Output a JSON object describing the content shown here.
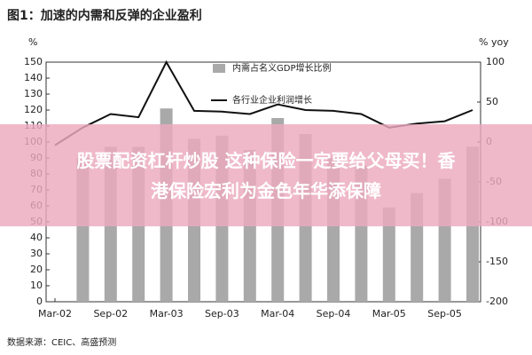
{
  "chart_data": {
    "type": "bar-line",
    "title": "图1：加速的内需和反弹的企业盈利",
    "y_label": "%",
    "y2_label": "% yoy",
    "source": "数据来源：CEIC、高盛预测",
    "categories": [
      "Mar-02",
      null,
      "Sep-02",
      null,
      "Mar-03",
      null,
      "Sep-03",
      null,
      "Mar-04",
      null,
      "Sep-04",
      null,
      "Mar-05",
      null,
      "Sep-05",
      null
    ],
    "series": [
      {
        "name": "内需占名义GDP增长比例",
        "type": "bar",
        "color": "#a9a9a9",
        "values": [
          null,
          90,
          97,
          97,
          121,
          102,
          104,
          95,
          115,
          105,
          90,
          85,
          59,
          68,
          77,
          97
        ]
      },
      {
        "name": "各行业企业利润增长",
        "type": "line",
        "axis": "y2",
        "color": "#111111",
        "values": [
          -4,
          18,
          35,
          31,
          100,
          39,
          38,
          35,
          47,
          40,
          39,
          35,
          18,
          23,
          26,
          40
        ]
      }
    ],
    "ylim": [
      0,
      150
    ],
    "yticks": [
      0,
      10,
      20,
      30,
      40,
      50,
      60,
      70,
      80,
      90,
      100,
      110,
      120,
      130,
      140,
      150
    ],
    "y2lim": [
      -200,
      100
    ],
    "y2ticks": [
      -200,
      -150,
      -100,
      -50,
      0,
      50,
      100
    ]
  },
  "banner": {
    "lines": [
      "股票配资杠杆炒股 这种保险一定要给父母买！香",
      "港保险宏利为金色年华添保障"
    ]
  }
}
